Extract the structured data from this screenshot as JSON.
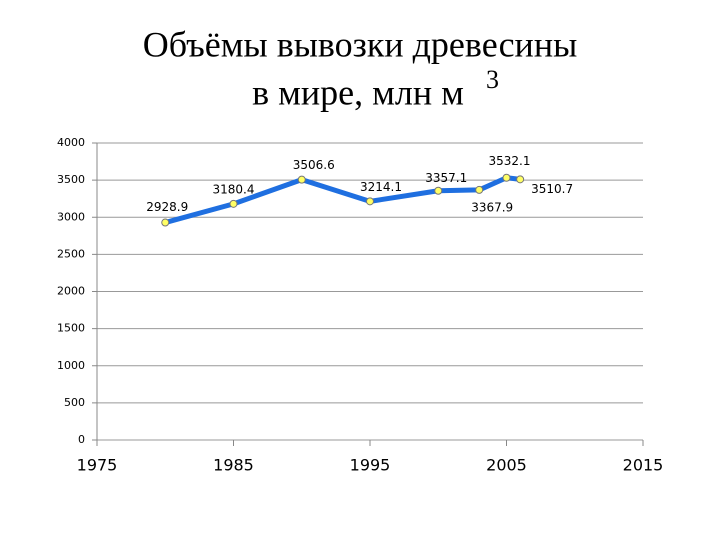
{
  "chart_data": {
    "type": "line",
    "title_lines": [
      "Объёмы вывозки древесины",
      "в мире, млн м"
    ],
    "title_superscript": "3",
    "x": [
      1980,
      1985,
      1990,
      1995,
      2000,
      2003,
      2005,
      2006
    ],
    "values": [
      2928.9,
      3180.4,
      3506.6,
      3214.1,
      3357.1,
      3367.9,
      3532.1,
      3510.7
    ],
    "color": "#1f6fe0",
    "marker_color": "#ffff66",
    "xlim": [
      1975,
      2015
    ],
    "xticks": [
      1975,
      1985,
      1995,
      2005,
      2015
    ],
    "ylim": [
      0,
      4000
    ],
    "yticks": [
      0,
      500,
      1000,
      1500,
      2000,
      2500,
      3000,
      3500,
      4000
    ],
    "grid": true
  }
}
